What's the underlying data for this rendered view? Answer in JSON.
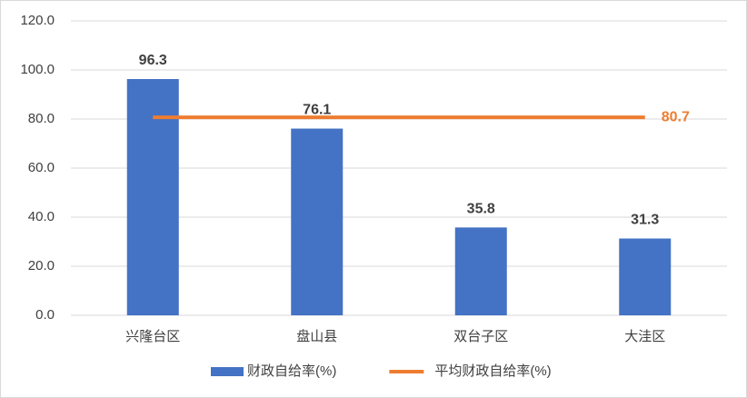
{
  "chart_data": {
    "type": "bar",
    "categories": [
      "兴隆台区",
      "盘山县",
      "双台子区",
      "大洼区"
    ],
    "series": [
      {
        "name": "财政自给率(%)",
        "type": "bar",
        "color": "#4472c4",
        "values": [
          96.3,
          76.1,
          35.8,
          31.3
        ]
      },
      {
        "name": "平均财政自给率(%)",
        "type": "line",
        "color": "#ed7d31",
        "values": [
          80.7,
          80.7,
          80.7,
          80.7
        ],
        "data_labels": "last"
      }
    ],
    "ylim": [
      0,
      120
    ],
    "yticks": [
      {
        "value": 0,
        "label": "0.0"
      },
      {
        "value": 20,
        "label": "20.0"
      },
      {
        "value": 40,
        "label": "40.0"
      },
      {
        "value": 60,
        "label": "60.0"
      },
      {
        "value": 80,
        "label": "80.0"
      },
      {
        "value": 100,
        "label": "100.0"
      },
      {
        "value": 120,
        "label": "120.0"
      }
    ],
    "grid": true,
    "legend": "bottom"
  }
}
